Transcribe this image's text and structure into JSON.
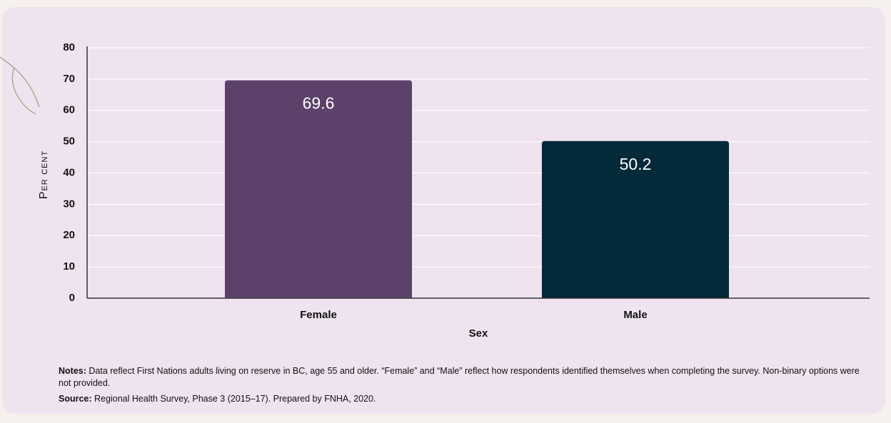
{
  "chart_data": {
    "type": "bar",
    "y_label": "Per cent",
    "x_label": "Sex",
    "categories": [
      "Female",
      "Male"
    ],
    "values": [
      69.6,
      50.2
    ],
    "colors": [
      "#5c416b",
      "#022a38"
    ],
    "ylim": [
      0,
      80
    ],
    "yticks": [
      0,
      10,
      20,
      30,
      40,
      50,
      60,
      70,
      80
    ],
    "grid": true
  },
  "notes": {
    "label": "Notes:",
    "text": "Data reflect First Nations adults living on reserve in BC, age 55 and older. “Female” and “Male” reflect how respondents identified themselves when completing the survey. Non-binary options were not provided."
  },
  "source": {
    "label": "Source:",
    "text": "Regional Health Survey, Phase 3 (2015–17). Prepared by FNHA, 2020."
  }
}
